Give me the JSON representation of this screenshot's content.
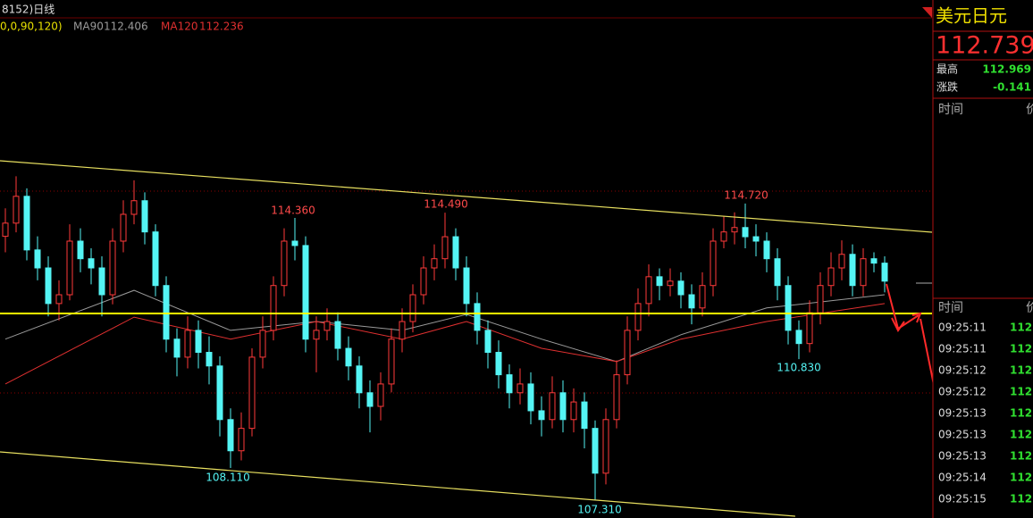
{
  "header": {
    "title": "8152)日线",
    "params": "0,0,90,120)"
  },
  "chart_data": {
    "type": "candlestick",
    "up_color": "#ff3a3a",
    "down_color": "#54f4f4",
    "ylim": [
      106.86,
      119.36
    ],
    "open": [
      113.9,
      114.23,
      114.9,
      113.56,
      113.11,
      112.22,
      112.44,
      113.78,
      113.34,
      113.11,
      112.44,
      113.78,
      114.45,
      114.79,
      114.01,
      112.67,
      111.33,
      110.88,
      111.55,
      111.0,
      110.66,
      109.32,
      108.54,
      109.1,
      110.88,
      111.55,
      112.67,
      113.78,
      113.67,
      111.33,
      111.55,
      111.77,
      111.1,
      110.66,
      109.99,
      109.65,
      110.21,
      111.33,
      111.77,
      112.44,
      113.11,
      113.34,
      113.89,
      113.11,
      112.22,
      111.55,
      111.0,
      110.44,
      109.99,
      110.21,
      109.54,
      109.32,
      109.99,
      109.32,
      109.76,
      109.1,
      107.98,
      109.32,
      110.44,
      111.55,
      112.22,
      112.89,
      112.67,
      112.78,
      112.44,
      112.11,
      112.67,
      113.78,
      114.01,
      114.12,
      113.89,
      113.78,
      113.34,
      112.67,
      111.55,
      111.22,
      111.99,
      112.67,
      113.11,
      113.45,
      112.67,
      113.34,
      113.23
    ],
    "high": [
      114.6,
      115.4,
      115.1,
      113.9,
      113.4,
      112.8,
      114.2,
      114.1,
      113.6,
      113.4,
      114.1,
      114.8,
      115.3,
      115.0,
      114.2,
      112.9,
      111.6,
      111.9,
      111.8,
      111.4,
      110.9,
      109.6,
      109.5,
      111.1,
      111.9,
      112.9,
      114.1,
      114.36,
      113.9,
      111.9,
      112.1,
      112.0,
      111.4,
      110.9,
      110.3,
      110.5,
      111.6,
      112.1,
      112.7,
      113.4,
      113.7,
      114.49,
      114.1,
      113.4,
      112.5,
      111.8,
      111.3,
      110.7,
      110.6,
      110.5,
      109.9,
      110.4,
      110.3,
      110.1,
      110.0,
      109.3,
      109.6,
      110.8,
      111.9,
      112.6,
      113.2,
      113.1,
      113.1,
      113.0,
      112.7,
      113.0,
      114.1,
      114.4,
      114.5,
      114.72,
      114.2,
      114.0,
      113.6,
      112.9,
      111.8,
      112.3,
      113.0,
      113.5,
      113.8,
      113.7,
      113.6,
      113.5,
      113.4
    ],
    "low": [
      113.5,
      114.0,
      113.3,
      112.8,
      111.9,
      111.8,
      112.3,
      113.0,
      112.7,
      111.9,
      112.2,
      113.5,
      114.2,
      113.7,
      112.4,
      111.0,
      110.4,
      110.6,
      110.6,
      110.2,
      108.9,
      108.11,
      108.3,
      108.9,
      110.6,
      111.3,
      112.4,
      113.3,
      111.0,
      110.5,
      111.3,
      110.8,
      110.3,
      109.6,
      109.0,
      109.3,
      110.0,
      111.0,
      111.5,
      112.2,
      112.8,
      113.1,
      112.8,
      111.9,
      111.2,
      110.6,
      110.1,
      109.6,
      109.7,
      109.2,
      108.9,
      109.1,
      109.0,
      109.0,
      108.6,
      107.31,
      107.7,
      109.1,
      110.2,
      111.3,
      111.9,
      112.3,
      112.4,
      112.1,
      111.7,
      111.9,
      112.4,
      113.6,
      113.7,
      113.6,
      113.4,
      113.0,
      112.3,
      111.2,
      110.83,
      111.0,
      111.7,
      112.4,
      112.8,
      112.4,
      112.4,
      113.0,
      112.5
    ],
    "close": [
      114.23,
      114.9,
      113.56,
      113.11,
      112.22,
      112.44,
      113.78,
      113.34,
      113.11,
      112.44,
      113.78,
      114.45,
      114.79,
      114.01,
      112.67,
      111.33,
      110.88,
      111.55,
      111.0,
      110.66,
      109.32,
      108.54,
      109.1,
      110.88,
      111.55,
      112.67,
      113.78,
      113.67,
      111.33,
      111.55,
      111.77,
      111.1,
      110.66,
      109.99,
      109.65,
      110.21,
      111.33,
      111.77,
      112.44,
      113.11,
      113.34,
      113.89,
      113.11,
      112.22,
      111.55,
      111.0,
      110.44,
      109.99,
      110.21,
      109.54,
      109.32,
      109.99,
      109.32,
      109.76,
      109.1,
      107.98,
      109.32,
      110.44,
      111.55,
      112.22,
      112.89,
      112.67,
      112.78,
      112.44,
      112.11,
      112.67,
      113.78,
      114.01,
      114.12,
      113.89,
      113.78,
      113.34,
      112.67,
      111.55,
      111.22,
      111.99,
      112.67,
      113.11,
      113.45,
      112.67,
      113.34,
      113.23,
      112.78
    ],
    "series": [
      {
        "name": "MA90",
        "last": 112.406,
        "color": "#9a9a9a",
        "x": [
          0,
          12,
          21,
          29,
          37,
          43,
          50,
          57,
          63,
          71,
          82
        ],
        "values": [
          111.33,
          112.55,
          111.55,
          111.77,
          111.55,
          111.95,
          111.33,
          110.77,
          111.44,
          112.11,
          112.44
        ]
      },
      {
        "name": "MA120",
        "last": 112.236,
        "color": "#e03030",
        "x": [
          0,
          12,
          21,
          29,
          37,
          43,
          50,
          57,
          63,
          71,
          82
        ],
        "values": [
          110.21,
          111.88,
          111.33,
          111.77,
          111.33,
          111.77,
          111.1,
          110.77,
          111.33,
          111.77,
          112.22
        ]
      }
    ],
    "annotations": [
      "114.360",
      "114.490",
      "114.720",
      "108.110",
      "107.310",
      "110.830"
    ]
  },
  "quote_panel": {
    "name": "美元日元",
    "price": "112.739",
    "rows": [
      [
        "最高",
        "112.969"
      ],
      [
        "涨跌",
        "-0.141"
      ]
    ],
    "header": [
      "时间",
      "价"
    ],
    "ticks_header": [
      "时间",
      "价"
    ],
    "ticks": [
      [
        "09:25:11",
        "112."
      ],
      [
        "09:25:11",
        "112."
      ],
      [
        "09:25:12",
        "112."
      ],
      [
        "09:25:12",
        "112."
      ],
      [
        "09:25:13",
        "112."
      ],
      [
        "09:25:13",
        "112."
      ],
      [
        "09:25:13",
        "112."
      ],
      [
        "09:25:14",
        "112."
      ],
      [
        "09:25:15",
        "112."
      ]
    ]
  }
}
